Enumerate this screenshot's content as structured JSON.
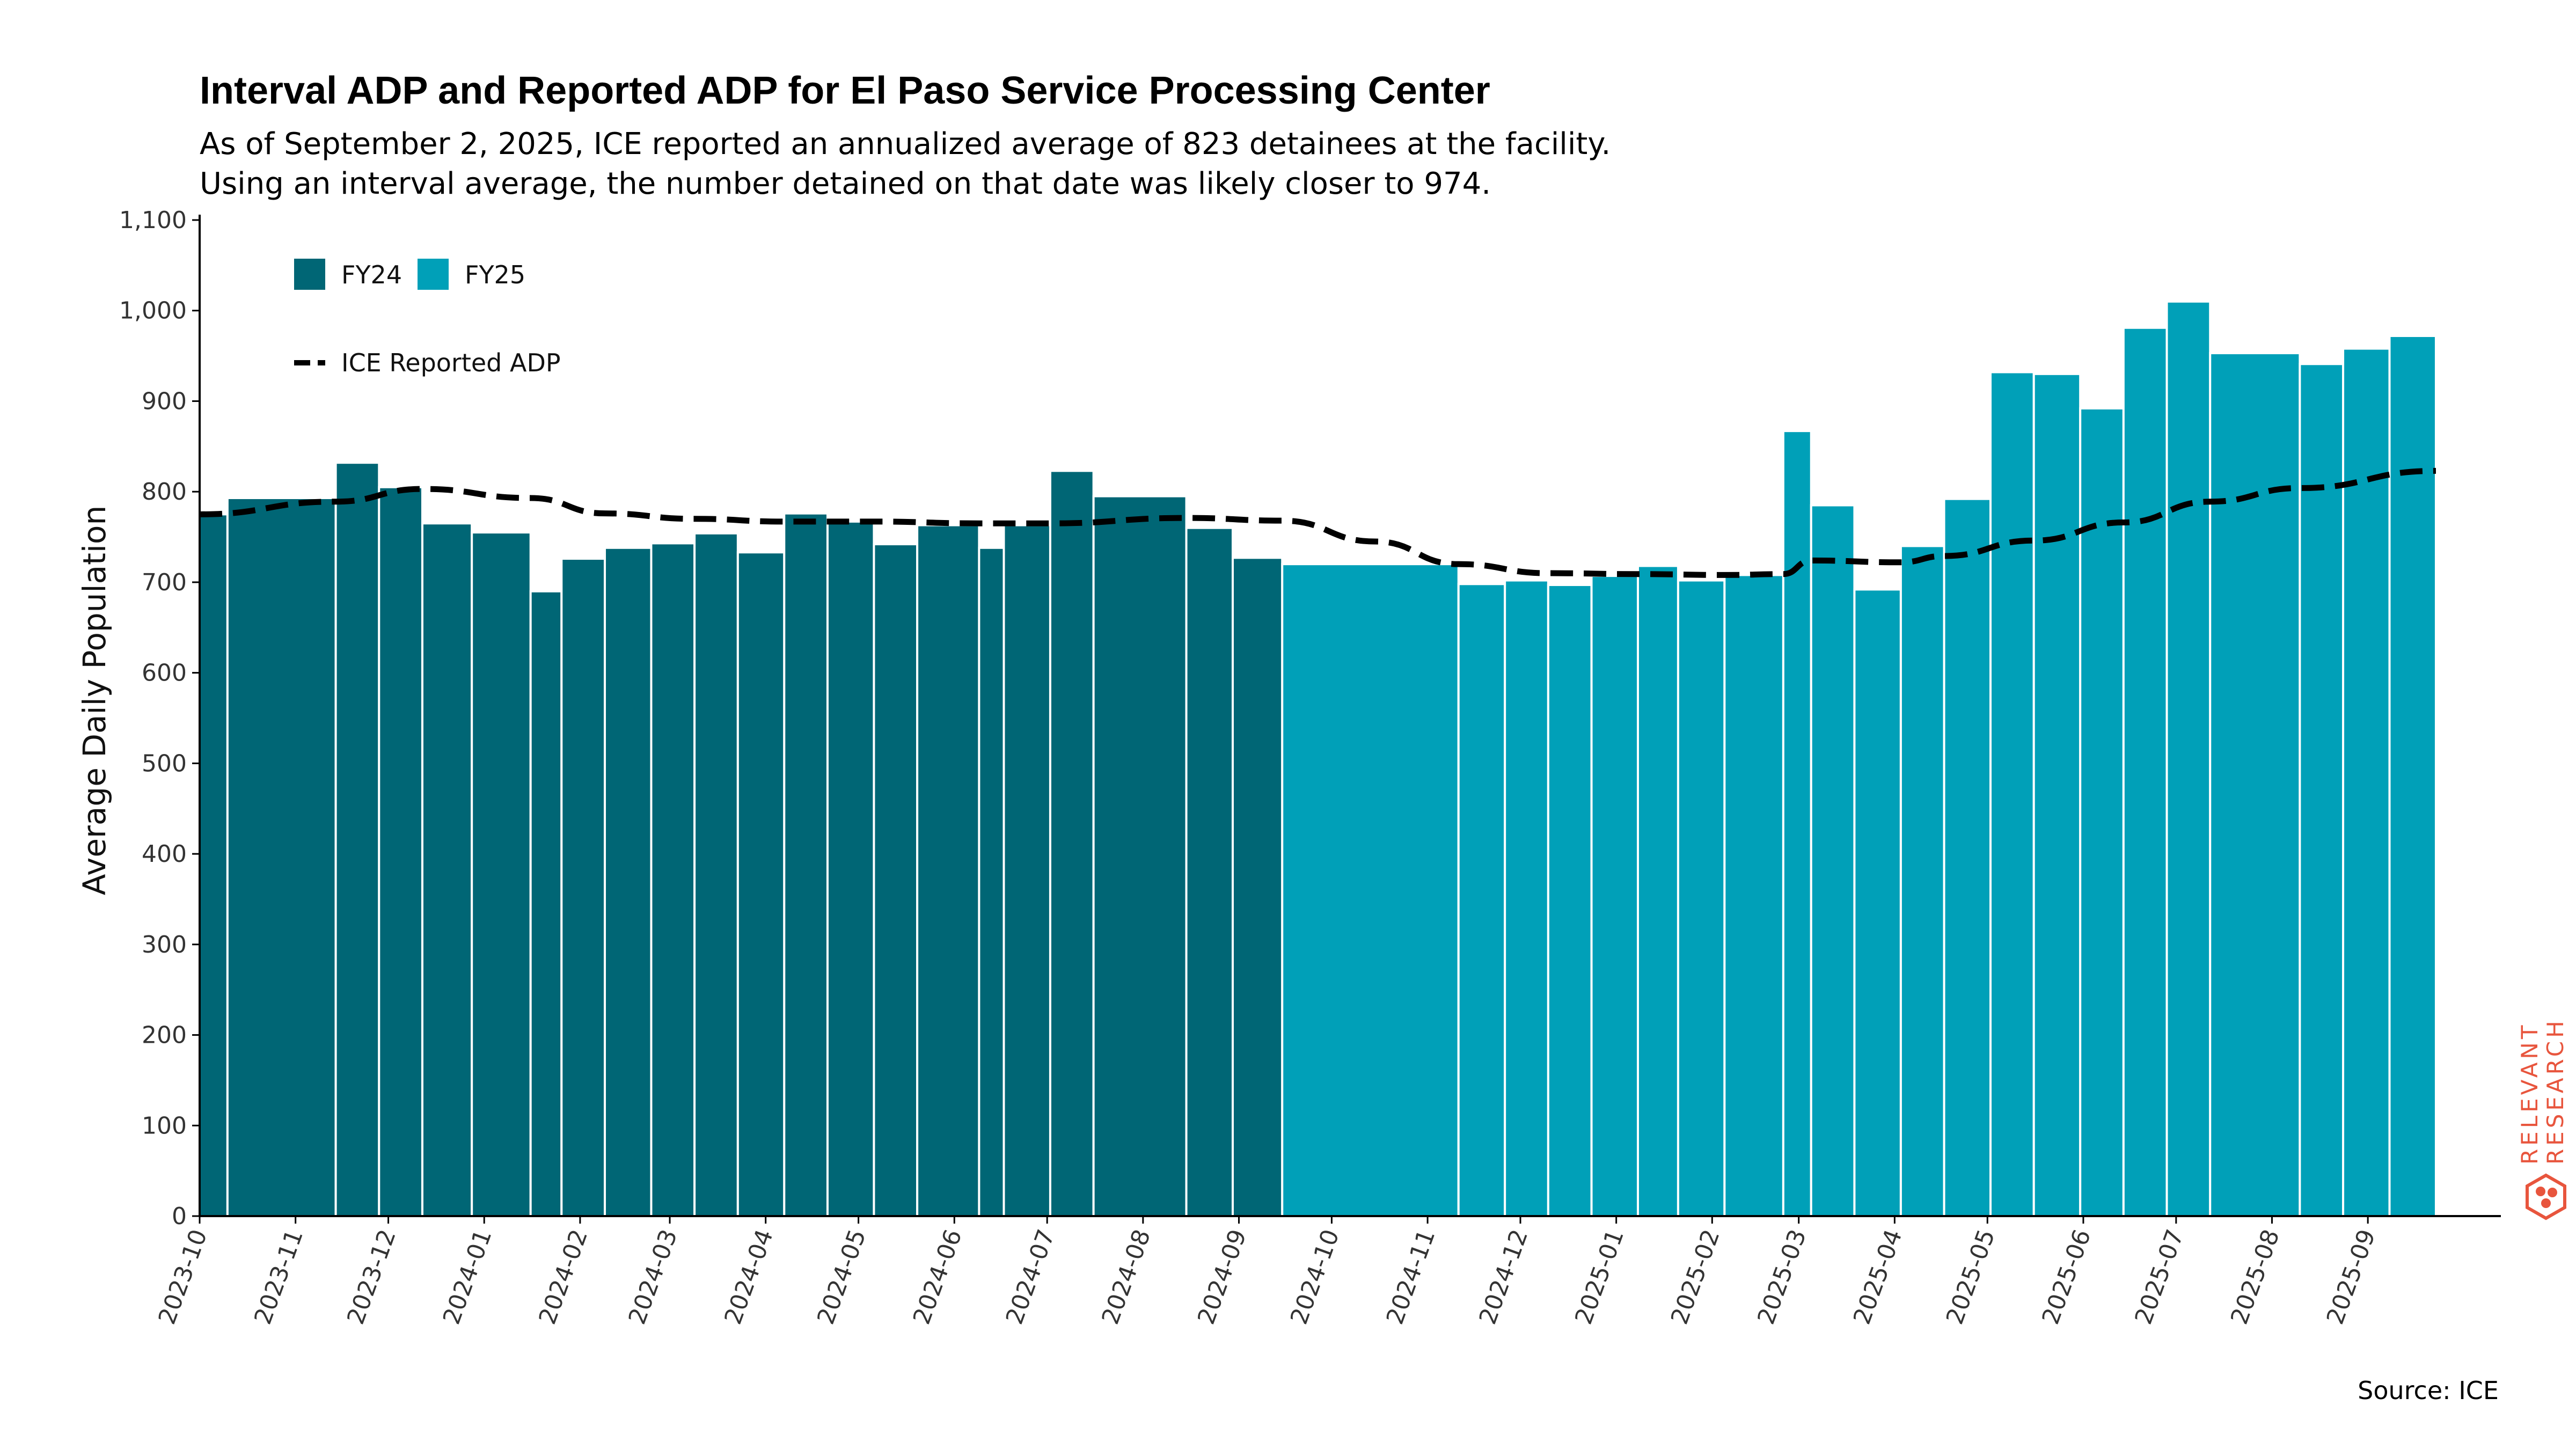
{
  "title": "Interval ADP and Reported ADP for El Paso Service Processing Center",
  "subtitle_lines": [
    "As of September 2, 2025, ICE reported an annualized average of 823 detainees at the facility.",
    "Using an interval average, the number detained on that date was likely closer to 974."
  ],
  "source": "Source: ICE",
  "brand": {
    "line1": "RELEVANT",
    "line2": "RESEARCH",
    "color": "#e8553d",
    "icon": "hexagon-logo-icon"
  },
  "colors": {
    "fy24": "#006675",
    "fy25": "#00a0b8",
    "line": "#000000",
    "axis": "#000000"
  },
  "chart_data": {
    "type": "bar",
    "ylabel": "Average Daily Population",
    "xlabel": "",
    "ylim": [
      0,
      1100
    ],
    "yticks": [
      0,
      100,
      200,
      300,
      400,
      500,
      600,
      700,
      800,
      900,
      1000,
      1100
    ],
    "ytick_labels": [
      "0",
      "100",
      "200",
      "300",
      "400",
      "500",
      "600",
      "700",
      "800",
      "900",
      "1,000",
      "1,100"
    ],
    "xlim": [
      "2023-10-01",
      "2025-10-14"
    ],
    "xticks": [
      "2023-10-01",
      "2023-11-01",
      "2023-12-01",
      "2024-01-01",
      "2024-02-01",
      "2024-03-01",
      "2024-04-01",
      "2024-05-01",
      "2024-06-01",
      "2024-07-01",
      "2024-08-01",
      "2024-09-01",
      "2024-10-01",
      "2024-11-01",
      "2024-12-01",
      "2025-01-01",
      "2025-02-01",
      "2025-03-01",
      "2025-04-01",
      "2025-05-01",
      "2025-06-01",
      "2025-07-01",
      "2025-08-01",
      "2025-09-01"
    ],
    "xtick_labels": [
      "2023-10",
      "2023-11",
      "2023-12",
      "2024-01",
      "2024-02",
      "2024-03",
      "2024-04",
      "2024-05",
      "2024-06",
      "2024-07",
      "2024-08",
      "2024-09",
      "2024-10",
      "2024-11",
      "2024-12",
      "2025-01",
      "2025-02",
      "2025-03",
      "2025-04",
      "2025-05",
      "2025-06",
      "2025-07",
      "2025-08",
      "2025-09"
    ],
    "legend": {
      "placement": "top-left",
      "bar_entries": [
        "FY24",
        "FY25"
      ],
      "line_entry": "ICE Reported ADP"
    },
    "grid": false,
    "bars": [
      {
        "start": "2023-10-01",
        "end": "2023-10-10",
        "value": 775,
        "series": "FY24"
      },
      {
        "start": "2023-10-10",
        "end": "2023-11-14",
        "value": 793,
        "series": "FY24"
      },
      {
        "start": "2023-11-14",
        "end": "2023-11-28",
        "value": 832,
        "series": "FY24"
      },
      {
        "start": "2023-11-28",
        "end": "2023-12-12",
        "value": 805,
        "series": "FY24"
      },
      {
        "start": "2023-12-12",
        "end": "2023-12-28",
        "value": 765,
        "series": "FY24"
      },
      {
        "start": "2023-12-28",
        "end": "2024-01-16",
        "value": 755,
        "series": "FY24"
      },
      {
        "start": "2024-01-16",
        "end": "2024-01-26",
        "value": 690,
        "series": "FY24"
      },
      {
        "start": "2024-01-26",
        "end": "2024-02-09",
        "value": 726,
        "series": "FY24"
      },
      {
        "start": "2024-02-09",
        "end": "2024-02-24",
        "value": 738,
        "series": "FY24"
      },
      {
        "start": "2024-02-24",
        "end": "2024-03-09",
        "value": 743,
        "series": "FY24"
      },
      {
        "start": "2024-03-09",
        "end": "2024-03-23",
        "value": 754,
        "series": "FY24"
      },
      {
        "start": "2024-03-23",
        "end": "2024-04-07",
        "value": 733,
        "series": "FY24"
      },
      {
        "start": "2024-04-07",
        "end": "2024-04-21",
        "value": 776,
        "series": "FY24"
      },
      {
        "start": "2024-04-21",
        "end": "2024-05-06",
        "value": 767,
        "series": "FY24"
      },
      {
        "start": "2024-05-06",
        "end": "2024-05-20",
        "value": 742,
        "series": "FY24"
      },
      {
        "start": "2024-05-20",
        "end": "2024-06-09",
        "value": 763,
        "series": "FY24"
      },
      {
        "start": "2024-06-09",
        "end": "2024-06-17",
        "value": 738,
        "series": "FY24"
      },
      {
        "start": "2024-06-17",
        "end": "2024-07-02",
        "value": 763,
        "series": "FY24"
      },
      {
        "start": "2024-07-02",
        "end": "2024-07-16",
        "value": 823,
        "series": "FY24"
      },
      {
        "start": "2024-07-16",
        "end": "2024-08-15",
        "value": 795,
        "series": "FY24"
      },
      {
        "start": "2024-08-15",
        "end": "2024-08-30",
        "value": 760,
        "series": "FY24"
      },
      {
        "start": "2024-08-30",
        "end": "2024-09-15",
        "value": 727,
        "series": "FY24"
      },
      {
        "start": "2024-09-15",
        "end": "2024-11-11",
        "value": 720,
        "series": "FY25"
      },
      {
        "start": "2024-11-11",
        "end": "2024-11-26",
        "value": 698,
        "series": "FY25"
      },
      {
        "start": "2024-11-26",
        "end": "2024-12-10",
        "value": 702,
        "series": "FY25"
      },
      {
        "start": "2024-12-10",
        "end": "2024-12-24",
        "value": 697,
        "series": "FY25"
      },
      {
        "start": "2024-12-24",
        "end": "2025-01-08",
        "value": 707,
        "series": "FY25"
      },
      {
        "start": "2025-01-08",
        "end": "2025-01-21",
        "value": 718,
        "series": "FY25"
      },
      {
        "start": "2025-01-21",
        "end": "2025-02-05",
        "value": 702,
        "series": "FY25"
      },
      {
        "start": "2025-02-05",
        "end": "2025-02-24",
        "value": 708,
        "series": "FY25"
      },
      {
        "start": "2025-02-24",
        "end": "2025-03-05",
        "value": 867,
        "series": "FY25"
      },
      {
        "start": "2025-03-05",
        "end": "2025-03-19",
        "value": 785,
        "series": "FY25"
      },
      {
        "start": "2025-03-19",
        "end": "2025-04-03",
        "value": 692,
        "series": "FY25"
      },
      {
        "start": "2025-04-03",
        "end": "2025-04-17",
        "value": 740,
        "series": "FY25"
      },
      {
        "start": "2025-04-17",
        "end": "2025-05-02",
        "value": 792,
        "series": "FY25"
      },
      {
        "start": "2025-05-02",
        "end": "2025-05-16",
        "value": 932,
        "series": "FY25"
      },
      {
        "start": "2025-05-16",
        "end": "2025-05-31",
        "value": 930,
        "series": "FY25"
      },
      {
        "start": "2025-05-31",
        "end": "2025-06-14",
        "value": 892,
        "series": "FY25"
      },
      {
        "start": "2025-06-14",
        "end": "2025-06-28",
        "value": 981,
        "series": "FY25"
      },
      {
        "start": "2025-06-28",
        "end": "2025-07-12",
        "value": 1010,
        "series": "FY25"
      },
      {
        "start": "2025-07-12",
        "end": "2025-08-10",
        "value": 953,
        "series": "FY25"
      },
      {
        "start": "2025-08-10",
        "end": "2025-08-24",
        "value": 941,
        "series": "FY25"
      },
      {
        "start": "2025-08-24",
        "end": "2025-09-08",
        "value": 958,
        "series": "FY25"
      },
      {
        "start": "2025-09-08",
        "end": "2025-09-23",
        "value": 972,
        "series": "FY25"
      }
    ],
    "line": {
      "name": "ICE Reported ADP",
      "points": [
        [
          "2023-10-01",
          775
        ],
        [
          "2023-11-14",
          789
        ],
        [
          "2023-12-12",
          803
        ],
        [
          "2024-01-16",
          793
        ],
        [
          "2024-02-09",
          776
        ],
        [
          "2024-03-09",
          770
        ],
        [
          "2024-04-07",
          767
        ],
        [
          "2024-05-06",
          767
        ],
        [
          "2024-06-09",
          765
        ],
        [
          "2024-07-02",
          765
        ],
        [
          "2024-08-15",
          771
        ],
        [
          "2024-09-15",
          768
        ],
        [
          "2024-10-15",
          745
        ],
        [
          "2024-11-11",
          720
        ],
        [
          "2024-12-10",
          710
        ],
        [
          "2025-01-08",
          709
        ],
        [
          "2025-02-05",
          708
        ],
        [
          "2025-02-24",
          709
        ],
        [
          "2025-03-05",
          724
        ],
        [
          "2025-04-03",
          722
        ],
        [
          "2025-04-17",
          729
        ],
        [
          "2025-05-16",
          746
        ],
        [
          "2025-06-14",
          766
        ],
        [
          "2025-07-12",
          789
        ],
        [
          "2025-08-10",
          804
        ],
        [
          "2025-09-23",
          823
        ]
      ]
    }
  }
}
